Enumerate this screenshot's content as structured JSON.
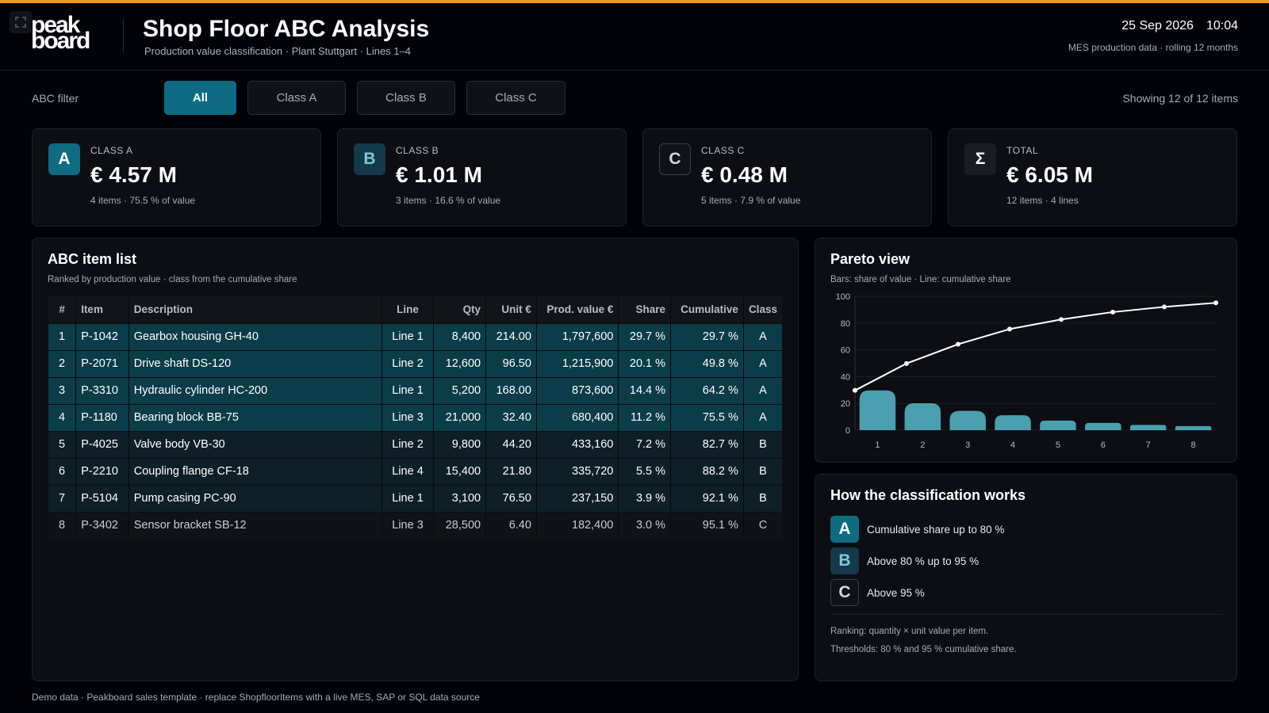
{
  "header": {
    "logo_line1": "peak",
    "logo_line2": "board",
    "title": "Shop Floor ABC Analysis",
    "subtitle": "Production value classification · Plant Stuttgart · Lines 1–4",
    "date": "25 Sep 2026",
    "time": "10:04",
    "source": "MES production data · rolling 12 months"
  },
  "filter": {
    "label": "ABC filter",
    "buttons": [
      "All",
      "Class A",
      "Class B",
      "Class C"
    ],
    "active": "All",
    "showing": "Showing 12 of 12 items"
  },
  "kpis": [
    {
      "badge": "A",
      "label": "CLASS A",
      "value": "€ 4.57 M",
      "note": "4 items · 75.5 % of value"
    },
    {
      "badge": "B",
      "label": "CLASS B",
      "value": "€ 1.01 M",
      "note": "3 items · 16.6 % of value"
    },
    {
      "badge": "C",
      "label": "CLASS C",
      "value": "€ 0.48 M",
      "note": "5 items · 7.9 % of value"
    },
    {
      "badge": "Σ",
      "label": "TOTAL",
      "value": "€ 6.05 M",
      "note": "12 items · 4 lines"
    }
  ],
  "table": {
    "title": "ABC item list",
    "subtitle": "Ranked by production value · class from the cumulative share",
    "columns": [
      "#",
      "Item",
      "Description",
      "Line",
      "Qty",
      "Unit €",
      "Prod. value €",
      "Share",
      "Cumulative",
      "Class"
    ],
    "rows": [
      {
        "n": "1",
        "item": "P-1042",
        "desc": "Gearbox housing GH-40",
        "line": "Line 1",
        "qty": "8,400",
        "unit": "214.00",
        "value": "1,797,600",
        "share": "29.7 %",
        "cum": "29.7 %",
        "cls": "A"
      },
      {
        "n": "2",
        "item": "P-2071",
        "desc": "Drive shaft DS-120",
        "line": "Line 2",
        "qty": "12,600",
        "unit": "96.50",
        "value": "1,215,900",
        "share": "20.1 %",
        "cum": "49.8 %",
        "cls": "A"
      },
      {
        "n": "3",
        "item": "P-3310",
        "desc": "Hydraulic cylinder HC-200",
        "line": "Line 1",
        "qty": "5,200",
        "unit": "168.00",
        "value": "873,600",
        "share": "14.4 %",
        "cum": "64.2 %",
        "cls": "A"
      },
      {
        "n": "4",
        "item": "P-1180",
        "desc": "Bearing block BB-75",
        "line": "Line 3",
        "qty": "21,000",
        "unit": "32.40",
        "value": "680,400",
        "share": "11.2 %",
        "cum": "75.5 %",
        "cls": "A"
      },
      {
        "n": "5",
        "item": "P-4025",
        "desc": "Valve body VB-30",
        "line": "Line 2",
        "qty": "9,800",
        "unit": "44.20",
        "value": "433,160",
        "share": "7.2 %",
        "cum": "82.7 %",
        "cls": "B"
      },
      {
        "n": "6",
        "item": "P-2210",
        "desc": "Coupling flange CF-18",
        "line": "Line 4",
        "qty": "15,400",
        "unit": "21.80",
        "value": "335,720",
        "share": "5.5 %",
        "cum": "88.2 %",
        "cls": "B"
      },
      {
        "n": "7",
        "item": "P-5104",
        "desc": "Pump casing PC-90",
        "line": "Line 1",
        "qty": "3,100",
        "unit": "76.50",
        "value": "237,150",
        "share": "3.9 %",
        "cum": "92.1 %",
        "cls": "B"
      },
      {
        "n": "8",
        "item": "P-3402",
        "desc": "Sensor bracket SB-12",
        "line": "Line 3",
        "qty": "28,500",
        "unit": "6.40",
        "value": "182,400",
        "share": "3.0 %",
        "cum": "95.1 %",
        "cls": "C"
      }
    ]
  },
  "pareto": {
    "title": "Pareto view",
    "subtitle": "Bars: share of value · Line: cumulative share"
  },
  "chart_data": {
    "type": "bar",
    "categories": [
      "1",
      "2",
      "3",
      "4",
      "5",
      "6",
      "7",
      "8"
    ],
    "series": [
      {
        "type": "bar",
        "values": [
          29.7,
          20.1,
          14.4,
          11.2,
          7.2,
          5.5,
          3.9,
          3.0
        ]
      },
      {
        "type": "line",
        "values": [
          29.7,
          49.8,
          64.2,
          75.5,
          82.7,
          88.2,
          92.1,
          95.1
        ]
      }
    ],
    "yticks": [
      "0",
      "20",
      "40",
      "60",
      "80",
      "100"
    ],
    "ylim": [
      0,
      100
    ],
    "grid": true,
    "colors": {
      "bar": "#4a9fb0",
      "line": "#ffffff"
    }
  },
  "classification": {
    "title": "How the classification works",
    "rules": [
      {
        "badge": "A",
        "text": "Cumulative share up to 80 %"
      },
      {
        "badge": "B",
        "text": "Above 80 % up to 95 %"
      },
      {
        "badge": "C",
        "text": "Above 95 %"
      }
    ],
    "note1": "Ranking: quantity × unit value per item.",
    "note2": "Thresholds: 80 % and 95 % cumulative share."
  },
  "footer": "Demo data · Peakboard sales template · replace ShopfloorItems with a live MES, SAP or SQL data source"
}
